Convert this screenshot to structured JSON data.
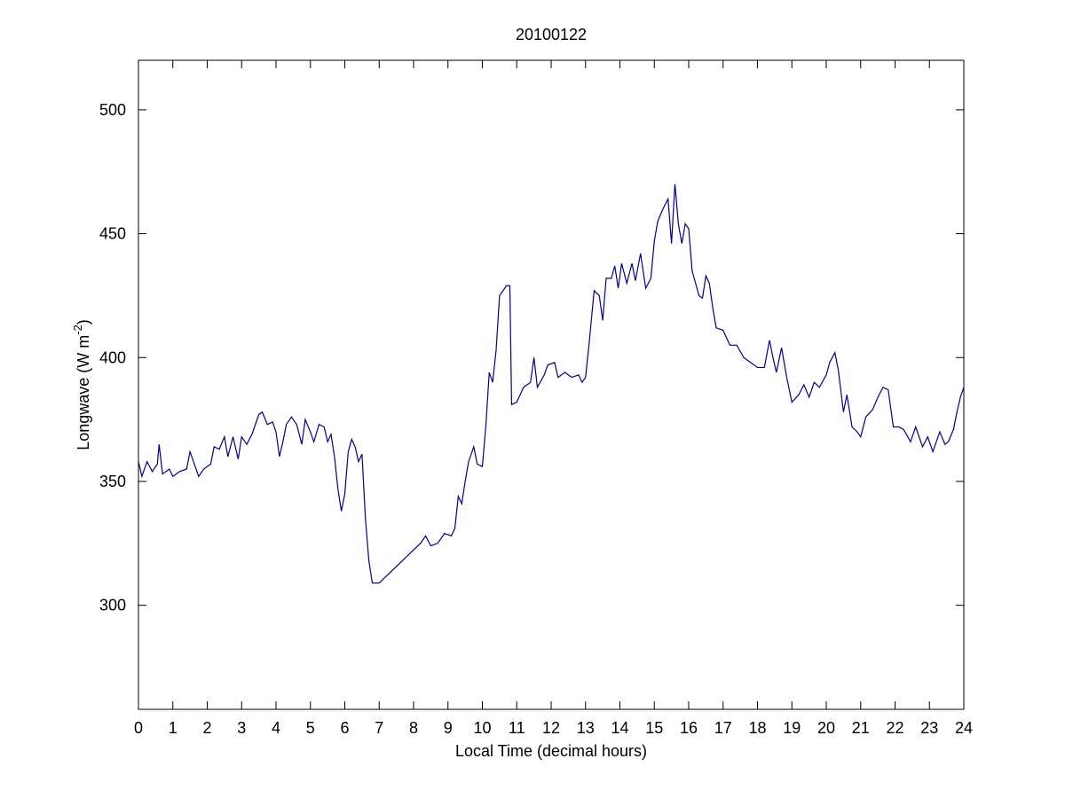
{
  "chart_data": {
    "type": "line",
    "title": "20100122",
    "xlabel": "Local Time (decimal hours)",
    "ylabel_parts": [
      "Longwave (W m",
      "-2",
      ")"
    ],
    "color": "#00008b",
    "xlim": [
      0,
      24
    ],
    "ylim": [
      258,
      520
    ],
    "xticks": [
      0,
      1,
      2,
      3,
      4,
      5,
      6,
      7,
      8,
      9,
      10,
      11,
      12,
      13,
      14,
      15,
      16,
      17,
      18,
      19,
      20,
      21,
      22,
      23,
      24
    ],
    "yticks": [
      300,
      350,
      400,
      450,
      500
    ],
    "grid": false,
    "x": [
      0,
      0.1,
      0.25,
      0.4,
      0.55,
      0.6,
      0.7,
      0.9,
      1.0,
      1.2,
      1.4,
      1.5,
      1.6,
      1.75,
      1.9,
      2.1,
      2.2,
      2.35,
      2.5,
      2.6,
      2.75,
      2.9,
      3.0,
      3.15,
      3.3,
      3.5,
      3.6,
      3.75,
      3.9,
      4.0,
      4.1,
      4.2,
      4.3,
      4.45,
      4.6,
      4.75,
      4.85,
      5.0,
      5.1,
      5.25,
      5.4,
      5.5,
      5.6,
      5.7,
      5.8,
      5.9,
      6.0,
      6.1,
      6.2,
      6.3,
      6.4,
      6.5,
      6.6,
      6.7,
      6.8,
      7.0,
      7.3,
      7.6,
      7.9,
      8.2,
      8.35,
      8.5,
      8.7,
      8.9,
      9.1,
      9.2,
      9.3,
      9.4,
      9.5,
      9.6,
      9.75,
      9.85,
      10.0,
      10.1,
      10.2,
      10.3,
      10.4,
      10.5,
      10.7,
      10.8,
      10.85,
      11.0,
      11.2,
      11.4,
      11.5,
      11.6,
      11.8,
      11.9,
      12.1,
      12.2,
      12.4,
      12.6,
      12.8,
      12.9,
      13.0,
      13.1,
      13.25,
      13.4,
      13.5,
      13.6,
      13.75,
      13.85,
      13.95,
      14.05,
      14.2,
      14.35,
      14.45,
      14.6,
      14.75,
      14.9,
      15.0,
      15.1,
      15.25,
      15.4,
      15.5,
      15.6,
      15.7,
      15.8,
      15.9,
      16.0,
      16.1,
      16.3,
      16.4,
      16.5,
      16.6,
      16.7,
      16.8,
      17.0,
      17.2,
      17.4,
      17.6,
      17.8,
      18.0,
      18.2,
      18.35,
      18.45,
      18.55,
      18.7,
      18.85,
      19.0,
      19.2,
      19.35,
      19.5,
      19.65,
      19.8,
      20.0,
      20.1,
      20.25,
      20.35,
      20.5,
      20.6,
      20.75,
      20.9,
      21.0,
      21.15,
      21.35,
      21.5,
      21.65,
      21.8,
      21.95,
      22.1,
      22.25,
      22.45,
      22.6,
      22.8,
      22.95,
      23.1,
      23.3,
      23.45,
      23.55,
      23.7,
      23.8,
      23.9,
      24.0
    ],
    "values": [
      358,
      352,
      358,
      354,
      357,
      365,
      353,
      355,
      352,
      354,
      355,
      362,
      358,
      352,
      355,
      357,
      364,
      363,
      368,
      360,
      368,
      359,
      368,
      365,
      369,
      377,
      378,
      373,
      374,
      370,
      360,
      366,
      373,
      376,
      373,
      365,
      375,
      370,
      366,
      373,
      372,
      366,
      369,
      360,
      347,
      338,
      345,
      362,
      367,
      364,
      358,
      361,
      335,
      318,
      309,
      309,
      313,
      317,
      321,
      325,
      328,
      324,
      325,
      329,
      328,
      331,
      344,
      341,
      350,
      358,
      364,
      357,
      356,
      372,
      394,
      390,
      403,
      425,
      429,
      429,
      381,
      382,
      388,
      390,
      400,
      388,
      393,
      397,
      398,
      392,
      394,
      392,
      393,
      390,
      392,
      405,
      427,
      425,
      415,
      432,
      432,
      437,
      428,
      438,
      430,
      438,
      431,
      442,
      428,
      432,
      447,
      455,
      460,
      464,
      446,
      470,
      454,
      446,
      454,
      452,
      435,
      425,
      424,
      433,
      430,
      420,
      412,
      411,
      405,
      405,
      400,
      398,
      396,
      396,
      407,
      400,
      394,
      404,
      392,
      382,
      385,
      389,
      384,
      390,
      388,
      393,
      398,
      402,
      395,
      378,
      385,
      372,
      370,
      368,
      376,
      379,
      384,
      388,
      387,
      372,
      372,
      371,
      366,
      372,
      364,
      368,
      362,
      370,
      365,
      366,
      371,
      378,
      384,
      388
    ]
  }
}
